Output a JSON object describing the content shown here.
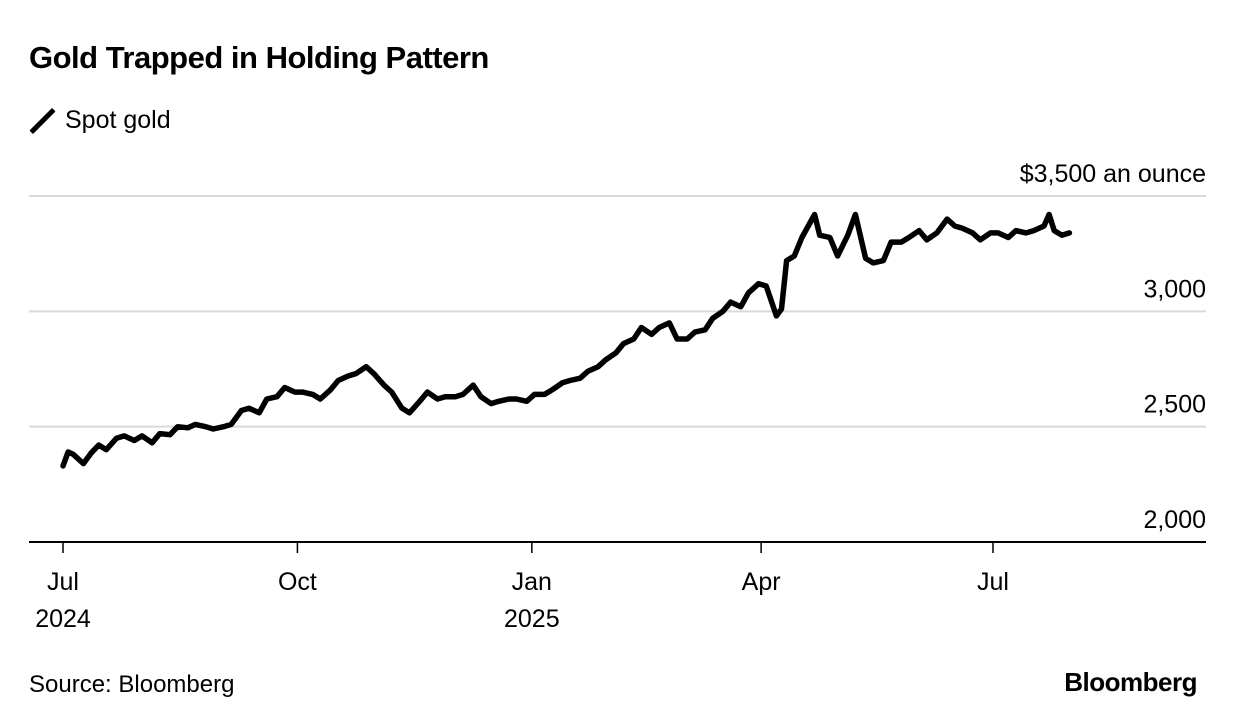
{
  "header": {
    "title": "Gold Trapped in Holding Pattern",
    "legend_label": "Spot gold"
  },
  "footer": {
    "source": "Source: Bloomberg",
    "logo": "Bloomberg"
  },
  "chart_data": {
    "type": "line",
    "title": "Gold Trapped in Holding Pattern",
    "xlabel": "",
    "ylabel": "$ an ounce",
    "ylim": [
      2000,
      3500
    ],
    "yticks": [
      2000,
      2500,
      3000,
      3500
    ],
    "ytick_labels": [
      "2,000",
      "2,500",
      "3,000",
      "$3,500 an ounce"
    ],
    "xlim": [
      "2024-06-24",
      "2025-10-05"
    ],
    "xticks": [
      {
        "date": "2024-07-01",
        "label": "Jul",
        "year": "2024"
      },
      {
        "date": "2024-10-01",
        "label": "Oct",
        "year": ""
      },
      {
        "date": "2025-01-01",
        "label": "Jan",
        "year": "2025"
      },
      {
        "date": "2025-04-01",
        "label": "Apr",
        "year": ""
      },
      {
        "date": "2025-07-01",
        "label": "Jul",
        "year": ""
      }
    ],
    "grid": true,
    "legend": "top-left",
    "line_color": "#000000",
    "grid_color": "#d9d9d9",
    "series": [
      {
        "name": "Spot gold",
        "x": [
          "2024-07-01",
          "2024-07-03",
          "2024-07-05",
          "2024-07-09",
          "2024-07-12",
          "2024-07-15",
          "2024-07-18",
          "2024-07-22",
          "2024-07-25",
          "2024-07-29",
          "2024-08-01",
          "2024-08-05",
          "2024-08-08",
          "2024-08-12",
          "2024-08-15",
          "2024-08-19",
          "2024-08-22",
          "2024-08-26",
          "2024-08-29",
          "2024-09-02",
          "2024-09-05",
          "2024-09-09",
          "2024-09-12",
          "2024-09-16",
          "2024-09-19",
          "2024-09-23",
          "2024-09-26",
          "2024-09-30",
          "2024-10-03",
          "2024-10-07",
          "2024-10-10",
          "2024-10-14",
          "2024-10-17",
          "2024-10-21",
          "2024-10-24",
          "2024-10-28",
          "2024-10-31",
          "2024-11-04",
          "2024-11-07",
          "2024-11-11",
          "2024-11-14",
          "2024-11-18",
          "2024-11-21",
          "2024-11-25",
          "2024-11-28",
          "2024-12-02",
          "2024-12-05",
          "2024-12-09",
          "2024-12-12",
          "2024-12-16",
          "2024-12-19",
          "2024-12-23",
          "2024-12-26",
          "2024-12-30",
          "2025-01-02",
          "2025-01-06",
          "2025-01-09",
          "2025-01-13",
          "2025-01-16",
          "2025-01-20",
          "2025-01-23",
          "2025-01-27",
          "2025-01-30",
          "2025-02-03",
          "2025-02-06",
          "2025-02-10",
          "2025-02-13",
          "2025-02-17",
          "2025-02-20",
          "2025-02-24",
          "2025-02-27",
          "2025-03-03",
          "2025-03-06",
          "2025-03-10",
          "2025-03-13",
          "2025-03-17",
          "2025-03-20",
          "2025-03-24",
          "2025-03-27",
          "2025-03-31",
          "2025-04-03",
          "2025-04-07",
          "2025-04-09",
          "2025-04-11",
          "2025-04-14",
          "2025-04-17",
          "2025-04-22",
          "2025-04-24",
          "2025-04-28",
          "2025-05-01",
          "2025-05-05",
          "2025-05-08",
          "2025-05-12",
          "2025-05-15",
          "2025-05-19",
          "2025-05-22",
          "2025-05-26",
          "2025-05-29",
          "2025-06-02",
          "2025-06-05",
          "2025-06-09",
          "2025-06-13",
          "2025-06-16",
          "2025-06-19",
          "2025-06-23",
          "2025-06-26",
          "2025-06-30",
          "2025-07-03",
          "2025-07-07",
          "2025-07-10",
          "2025-07-14",
          "2025-07-17",
          "2025-07-21",
          "2025-07-23",
          "2025-07-25",
          "2025-07-28",
          "2025-07-31"
        ],
        "values": [
          2330,
          2390,
          2380,
          2340,
          2385,
          2420,
          2400,
          2450,
          2460,
          2440,
          2460,
          2430,
          2470,
          2465,
          2500,
          2495,
          2510,
          2500,
          2490,
          2500,
          2510,
          2570,
          2580,
          2560,
          2620,
          2630,
          2670,
          2650,
          2650,
          2640,
          2620,
          2660,
          2700,
          2720,
          2730,
          2760,
          2730,
          2680,
          2650,
          2580,
          2560,
          2610,
          2650,
          2620,
          2630,
          2630,
          2640,
          2680,
          2630,
          2600,
          2610,
          2620,
          2620,
          2610,
          2640,
          2640,
          2660,
          2690,
          2700,
          2710,
          2740,
          2760,
          2790,
          2820,
          2860,
          2880,
          2930,
          2900,
          2930,
          2950,
          2880,
          2880,
          2910,
          2920,
          2970,
          3000,
          3040,
          3020,
          3080,
          3120,
          3110,
          2980,
          3010,
          3220,
          3240,
          3320,
          3420,
          3330,
          3320,
          3240,
          3330,
          3420,
          3230,
          3210,
          3220,
          3300,
          3300,
          3320,
          3350,
          3310,
          3340,
          3400,
          3370,
          3360,
          3340,
          3310,
          3340,
          3340,
          3320,
          3350,
          3340,
          3350,
          3370,
          3420,
          3350,
          3330,
          3340
        ]
      }
    ]
  }
}
